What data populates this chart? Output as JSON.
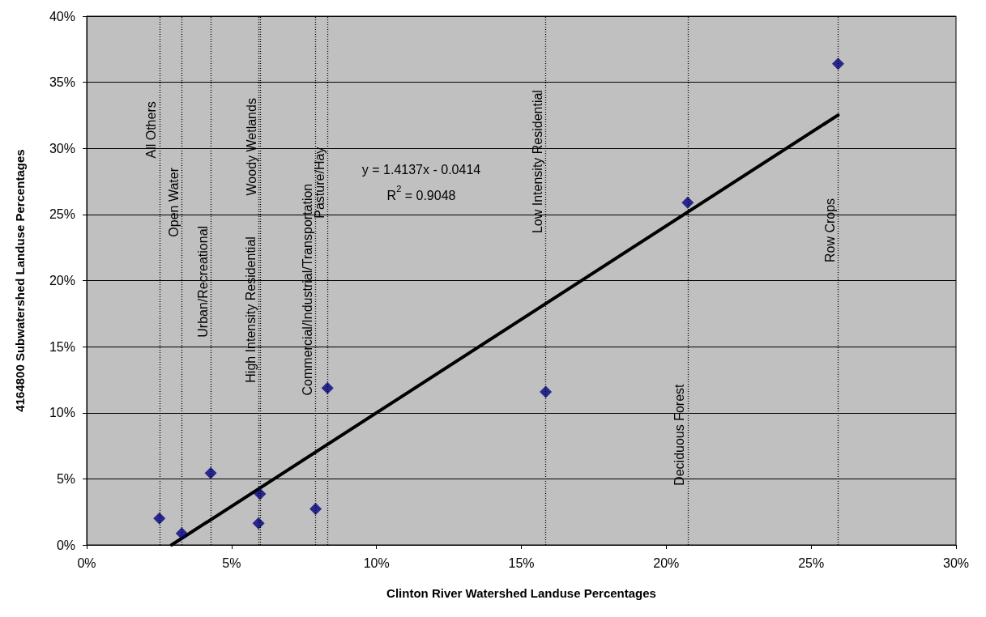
{
  "chart_data": {
    "type": "scatter",
    "xlabel": "Clinton River Watershed Landuse Percentages",
    "ylabel": "4164800 Subwatershed Landuse Percentages",
    "x": [
      2.51,
      3.28,
      4.28,
      5.93,
      5.98,
      7.9,
      8.31,
      15.84,
      20.74,
      25.93
    ],
    "series": [
      {
        "color": "#000080",
        "marker": "diamond",
        "values": [
          2.0,
          0.88,
          5.43,
          1.64,
          3.86,
          2.72,
          11.87,
          11.57,
          25.9,
          36.4
        ]
      },
      {
        "type": "line",
        "color": "#000000",
        "marker": "none",
        "line_style": "solid",
        "x": [
          2.93,
          25.93
        ],
        "values": [
          0,
          32.52
        ]
      }
    ],
    "xlim": [
      0,
      30
    ],
    "xticks": [
      {
        "value": 0,
        "label": "0%"
      },
      {
        "value": 5,
        "label": "5%"
      },
      {
        "value": 10,
        "label": "10%"
      },
      {
        "value": 15,
        "label": "15%"
      },
      {
        "value": 20,
        "label": "20%"
      },
      {
        "value": 25,
        "label": "25%"
      },
      {
        "value": 30,
        "label": "30%"
      }
    ],
    "ylim": [
      0,
      40
    ],
    "yticks": [
      {
        "value": 0,
        "label": "0%"
      },
      {
        "value": 5,
        "label": "5%"
      },
      {
        "value": 10,
        "label": "10%"
      },
      {
        "value": 15,
        "label": "15%"
      },
      {
        "value": 20,
        "label": "20%"
      },
      {
        "value": 25,
        "label": "25%"
      },
      {
        "value": 30,
        "label": "30%"
      },
      {
        "value": 35,
        "label": "35%"
      },
      {
        "value": 40,
        "label": "40%"
      }
    ],
    "grid": "y",
    "ref_lines": [
      {
        "axis": "x",
        "value": 2.51,
        "label": "All Others",
        "color": "#000000",
        "line_style": "dotted"
      },
      {
        "axis": "x",
        "value": 3.28,
        "label": "Open Water",
        "color": "#000000",
        "line_style": "dotted"
      },
      {
        "axis": "x",
        "value": 4.28,
        "label": "Urban/Recreational",
        "color": "#000000",
        "line_style": "dotted"
      },
      {
        "axis": "x",
        "value": 5.93,
        "label": "High Intensity Residential",
        "color": "#000000",
        "line_style": "dotted"
      },
      {
        "axis": "x",
        "value": 5.98,
        "label": "Woody Wetlands",
        "color": "#000000",
        "line_style": "dotted"
      },
      {
        "axis": "x",
        "value": 7.9,
        "label": "Commercial/Industrial/Transportation",
        "color": "#000000",
        "line_style": "dotted"
      },
      {
        "axis": "x",
        "value": 8.31,
        "label": "Pasture/Hay",
        "color": "#000000",
        "line_style": "dotted"
      },
      {
        "axis": "x",
        "value": 15.84,
        "label": "Low Intensity Residential",
        "color": "#000000",
        "line_style": "dotted"
      },
      {
        "axis": "x",
        "value": 20.74,
        "label": "Deciduous Forest",
        "color": "#000000",
        "line_style": "dotted"
      },
      {
        "axis": "x",
        "value": 25.93,
        "label": "Row Crops",
        "color": "#000000",
        "line_style": "dotted"
      }
    ],
    "annotations": [
      "y = 1.4137x - 0.0414",
      "R$^{2}$ = 0.9048"
    ]
  }
}
